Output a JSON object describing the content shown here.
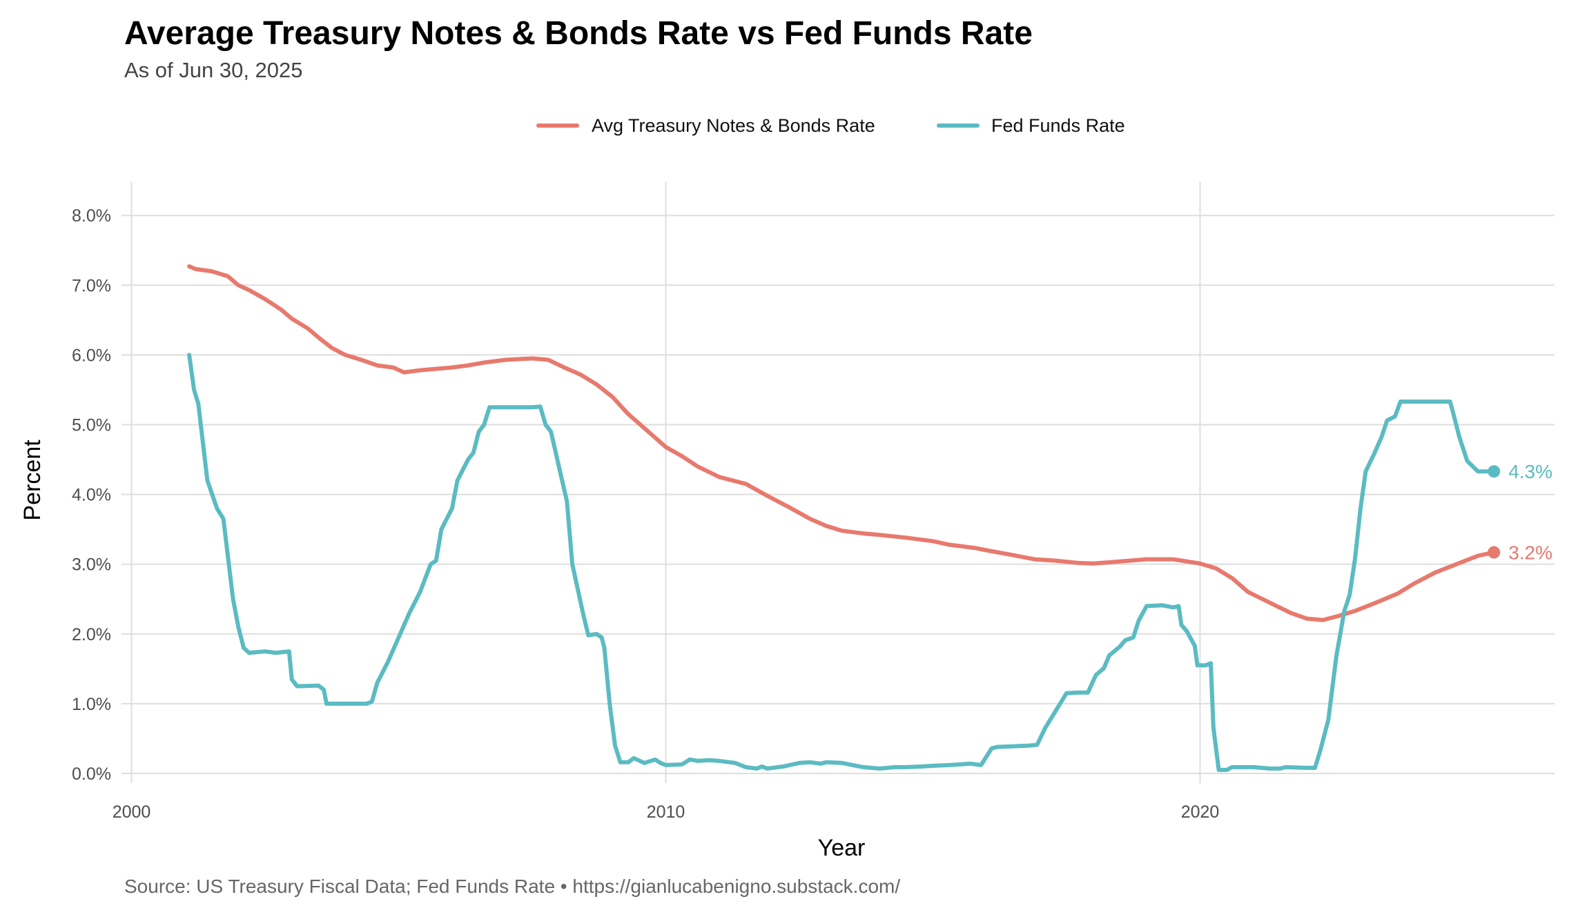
{
  "chart_data": {
    "type": "line",
    "title": "Average Treasury Notes & Bonds Rate vs Fed Funds Rate",
    "subtitle": "As of Jun 30, 2025",
    "xlabel": "Year",
    "ylabel": "Percent",
    "caption": "Source: US Treasury Fiscal Data; Fed Funds Rate • https://gianlucabenigno.substack.com/",
    "xlim": [
      2000,
      2026.7
    ],
    "ylim": [
      0,
      8.5
    ],
    "x_ticks": [
      2000,
      2010,
      2020
    ],
    "x_tick_labels": [
      "2000",
      "2010",
      "2020"
    ],
    "y_ticks": [
      0,
      1,
      2,
      3,
      4,
      5,
      6,
      7,
      8
    ],
    "y_tick_labels": [
      "0.0%",
      "1.0%",
      "2.0%",
      "3.0%",
      "4.0%",
      "5.0%",
      "6.0%",
      "7.0%",
      "8.0%"
    ],
    "grid": true,
    "legend_position": "top",
    "series": [
      {
        "name": "Avg Treasury Notes & Bonds Rate",
        "color": "#E8796D",
        "end_label": "3.2%",
        "points": [
          [
            2001.08,
            7.27
          ],
          [
            2001.2,
            7.23
          ],
          [
            2001.5,
            7.2
          ],
          [
            2001.8,
            7.13
          ],
          [
            2002.0,
            7.0
          ],
          [
            2002.2,
            6.93
          ],
          [
            2002.5,
            6.8
          ],
          [
            2002.8,
            6.65
          ],
          [
            2003.0,
            6.52
          ],
          [
            2003.3,
            6.38
          ],
          [
            2003.5,
            6.25
          ],
          [
            2003.75,
            6.1
          ],
          [
            2004.0,
            6.0
          ],
          [
            2004.3,
            5.93
          ],
          [
            2004.6,
            5.85
          ],
          [
            2004.9,
            5.82
          ],
          [
            2005.1,
            5.75
          ],
          [
            2005.4,
            5.78
          ],
          [
            2005.7,
            5.8
          ],
          [
            2006.0,
            5.82
          ],
          [
            2006.3,
            5.85
          ],
          [
            2006.6,
            5.89
          ],
          [
            2007.0,
            5.93
          ],
          [
            2007.5,
            5.95
          ],
          [
            2007.8,
            5.93
          ],
          [
            2008.1,
            5.82
          ],
          [
            2008.4,
            5.72
          ],
          [
            2008.7,
            5.58
          ],
          [
            2009.0,
            5.4
          ],
          [
            2009.3,
            5.15
          ],
          [
            2009.6,
            4.95
          ],
          [
            2010.0,
            4.68
          ],
          [
            2010.3,
            4.55
          ],
          [
            2010.6,
            4.4
          ],
          [
            2011.0,
            4.25
          ],
          [
            2011.5,
            4.15
          ],
          [
            2011.9,
            3.98
          ],
          [
            2012.3,
            3.82
          ],
          [
            2012.7,
            3.65
          ],
          [
            2013.0,
            3.55
          ],
          [
            2013.3,
            3.48
          ],
          [
            2013.7,
            3.44
          ],
          [
            2014.0,
            3.42
          ],
          [
            2014.5,
            3.38
          ],
          [
            2015.0,
            3.33
          ],
          [
            2015.3,
            3.28
          ],
          [
            2015.8,
            3.23
          ],
          [
            2016.0,
            3.2
          ],
          [
            2016.5,
            3.13
          ],
          [
            2016.9,
            3.07
          ],
          [
            2017.3,
            3.05
          ],
          [
            2017.7,
            3.02
          ],
          [
            2018.0,
            3.01
          ],
          [
            2018.5,
            3.04
          ],
          [
            2019.0,
            3.07
          ],
          [
            2019.5,
            3.07
          ],
          [
            2020.0,
            3.01
          ],
          [
            2020.3,
            2.94
          ],
          [
            2020.6,
            2.8
          ],
          [
            2020.9,
            2.6
          ],
          [
            2021.3,
            2.45
          ],
          [
            2021.7,
            2.3
          ],
          [
            2022.0,
            2.22
          ],
          [
            2022.3,
            2.2
          ],
          [
            2022.6,
            2.26
          ],
          [
            2022.9,
            2.33
          ],
          [
            2023.3,
            2.45
          ],
          [
            2023.7,
            2.58
          ],
          [
            2024.0,
            2.72
          ],
          [
            2024.4,
            2.88
          ],
          [
            2024.8,
            3.0
          ],
          [
            2025.2,
            3.12
          ],
          [
            2025.5,
            3.17
          ]
        ]
      },
      {
        "name": "Fed Funds Rate",
        "color": "#5BBBC2",
        "end_label": "4.3%",
        "points": [
          [
            2001.08,
            6.0
          ],
          [
            2001.17,
            5.5
          ],
          [
            2001.25,
            5.3
          ],
          [
            2001.42,
            4.2
          ],
          [
            2001.6,
            3.8
          ],
          [
            2001.72,
            3.65
          ],
          [
            2001.9,
            2.5
          ],
          [
            2002.0,
            2.1
          ],
          [
            2002.1,
            1.8
          ],
          [
            2002.2,
            1.73
          ],
          [
            2002.5,
            1.75
          ],
          [
            2002.7,
            1.73
          ],
          [
            2002.95,
            1.75
          ],
          [
            2003.0,
            1.35
          ],
          [
            2003.1,
            1.25
          ],
          [
            2003.5,
            1.26
          ],
          [
            2003.6,
            1.2
          ],
          [
            2003.65,
            1.0
          ],
          [
            2004.0,
            1.0
          ],
          [
            2004.4,
            1.0
          ],
          [
            2004.5,
            1.03
          ],
          [
            2004.6,
            1.3
          ],
          [
            2004.8,
            1.6
          ],
          [
            2005.0,
            1.95
          ],
          [
            2005.2,
            2.3
          ],
          [
            2005.4,
            2.6
          ],
          [
            2005.6,
            3.0
          ],
          [
            2005.7,
            3.05
          ],
          [
            2005.8,
            3.5
          ],
          [
            2006.0,
            3.8
          ],
          [
            2006.1,
            4.2
          ],
          [
            2006.3,
            4.5
          ],
          [
            2006.4,
            4.6
          ],
          [
            2006.5,
            4.9
          ],
          [
            2006.6,
            5.0
          ],
          [
            2006.7,
            5.25
          ],
          [
            2007.0,
            5.25
          ],
          [
            2007.5,
            5.25
          ],
          [
            2007.65,
            5.26
          ],
          [
            2007.75,
            5.0
          ],
          [
            2007.85,
            4.9
          ],
          [
            2008.0,
            4.4
          ],
          [
            2008.15,
            3.9
          ],
          [
            2008.25,
            3.0
          ],
          [
            2008.45,
            2.3
          ],
          [
            2008.55,
            1.98
          ],
          [
            2008.7,
            2.0
          ],
          [
            2008.8,
            1.95
          ],
          [
            2008.85,
            1.8
          ],
          [
            2008.95,
            1.0
          ],
          [
            2009.05,
            0.4
          ],
          [
            2009.15,
            0.16
          ],
          [
            2009.3,
            0.16
          ],
          [
            2009.4,
            0.22
          ],
          [
            2009.6,
            0.15
          ],
          [
            2009.8,
            0.2
          ],
          [
            2009.9,
            0.15
          ],
          [
            2010.0,
            0.12
          ],
          [
            2010.3,
            0.13
          ],
          [
            2010.45,
            0.2
          ],
          [
            2010.6,
            0.18
          ],
          [
            2010.8,
            0.19
          ],
          [
            2011.0,
            0.18
          ],
          [
            2011.3,
            0.15
          ],
          [
            2011.5,
            0.09
          ],
          [
            2011.7,
            0.07
          ],
          [
            2011.8,
            0.1
          ],
          [
            2011.9,
            0.07
          ],
          [
            2012.2,
            0.1
          ],
          [
            2012.5,
            0.15
          ],
          [
            2012.7,
            0.16
          ],
          [
            2012.9,
            0.14
          ],
          [
            2013.0,
            0.16
          ],
          [
            2013.3,
            0.15
          ],
          [
            2013.5,
            0.12
          ],
          [
            2013.7,
            0.09
          ],
          [
            2014.0,
            0.07
          ],
          [
            2014.3,
            0.09
          ],
          [
            2014.5,
            0.09
          ],
          [
            2014.8,
            0.1
          ],
          [
            2015.0,
            0.11
          ],
          [
            2015.3,
            0.12
          ],
          [
            2015.5,
            0.13
          ],
          [
            2015.7,
            0.14
          ],
          [
            2015.9,
            0.12
          ],
          [
            2016.0,
            0.24
          ],
          [
            2016.1,
            0.36
          ],
          [
            2016.2,
            0.38
          ],
          [
            2016.5,
            0.39
          ],
          [
            2016.8,
            0.4
          ],
          [
            2016.95,
            0.41
          ],
          [
            2017.1,
            0.65
          ],
          [
            2017.3,
            0.9
          ],
          [
            2017.5,
            1.15
          ],
          [
            2017.7,
            1.16
          ],
          [
            2017.9,
            1.16
          ],
          [
            2018.05,
            1.41
          ],
          [
            2018.2,
            1.51
          ],
          [
            2018.3,
            1.69
          ],
          [
            2018.5,
            1.82
          ],
          [
            2018.6,
            1.91
          ],
          [
            2018.75,
            1.95
          ],
          [
            2018.85,
            2.19
          ],
          [
            2019.0,
            2.4
          ],
          [
            2019.3,
            2.41
          ],
          [
            2019.5,
            2.38
          ],
          [
            2019.6,
            2.4
          ],
          [
            2019.65,
            2.13
          ],
          [
            2019.75,
            2.04
          ],
          [
            2019.9,
            1.83
          ],
          [
            2019.95,
            1.55
          ],
          [
            2020.1,
            1.55
          ],
          [
            2020.2,
            1.58
          ],
          [
            2020.25,
            0.65
          ],
          [
            2020.35,
            0.05
          ],
          [
            2020.5,
            0.05
          ],
          [
            2020.6,
            0.09
          ],
          [
            2021.0,
            0.09
          ],
          [
            2021.3,
            0.07
          ],
          [
            2021.5,
            0.07
          ],
          [
            2021.6,
            0.09
          ],
          [
            2022.0,
            0.08
          ],
          [
            2022.15,
            0.08
          ],
          [
            2022.25,
            0.33
          ],
          [
            2022.4,
            0.77
          ],
          [
            2022.55,
            1.68
          ],
          [
            2022.7,
            2.33
          ],
          [
            2022.8,
            2.56
          ],
          [
            2022.9,
            3.08
          ],
          [
            2023.0,
            3.78
          ],
          [
            2023.1,
            4.33
          ],
          [
            2023.25,
            4.57
          ],
          [
            2023.4,
            4.83
          ],
          [
            2023.5,
            5.06
          ],
          [
            2023.65,
            5.12
          ],
          [
            2023.75,
            5.33
          ],
          [
            2024.0,
            5.33
          ],
          [
            2024.5,
            5.33
          ],
          [
            2024.68,
            5.33
          ],
          [
            2024.75,
            5.13
          ],
          [
            2024.85,
            4.83
          ],
          [
            2025.0,
            4.48
          ],
          [
            2025.2,
            4.33
          ],
          [
            2025.5,
            4.33
          ]
        ]
      }
    ]
  }
}
